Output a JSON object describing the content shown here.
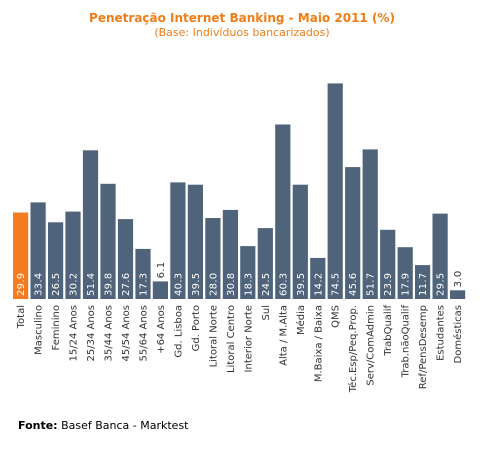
{
  "chart_data": {
    "type": "bar",
    "title": "Penetração Internet Banking - Maio 2011 (%)",
    "subtitle": "(Base: Indivíduos bancarizados)",
    "categories": [
      "Total",
      "Masculino",
      "Feminino",
      "15/24 Anos",
      "25/34 Anos",
      "35/44 Anos",
      "45/54 Anos",
      "55/64 Anos",
      "+64 Anos",
      "Gd. Lisboa",
      "Gd. Porto",
      "Litoral Norte",
      "Litoral Centro",
      "Interior Norte",
      "Sul",
      "Alta / M.Alta",
      "Média",
      "M.Baixa / Baixa",
      "QMS",
      "Téc.Esp/Peq.Prop.",
      "Serv/ComAdmin",
      "TrabQualif",
      "Trab.nãoQualif",
      "Ref/PensDesemp",
      "Estudantes",
      "Domésticas"
    ],
    "values": [
      29.9,
      33.4,
      26.5,
      30.2,
      51.4,
      39.8,
      27.6,
      17.3,
      6.1,
      40.3,
      39.5,
      28.0,
      30.8,
      18.3,
      24.5,
      60.3,
      39.5,
      14.2,
      74.5,
      45.6,
      51.7,
      23.9,
      17.9,
      11.7,
      29.5,
      3.0
    ],
    "value_labels": [
      "29.9",
      "33.4",
      "26.5",
      "30.2",
      "51.4",
      "39.8",
      "27.6",
      "17.3",
      "6.1",
      "40.3",
      "39.5",
      "28.0",
      "30.8",
      "18.3",
      "24.5",
      "60.3",
      "39.5",
      "14.2",
      "74.5",
      "45.6",
      "51.7",
      "23.9",
      "17.9",
      "11.7",
      "29.5",
      "3.0"
    ],
    "highlight_index": 0,
    "ylim": [
      0,
      75
    ],
    "grid": false,
    "colors": {
      "bar": "#4f637b",
      "highlight": "#f47b20",
      "title": "#f07d17"
    }
  },
  "source": {
    "label": "Fonte:",
    "text": " Basef Banca - Marktest"
  }
}
